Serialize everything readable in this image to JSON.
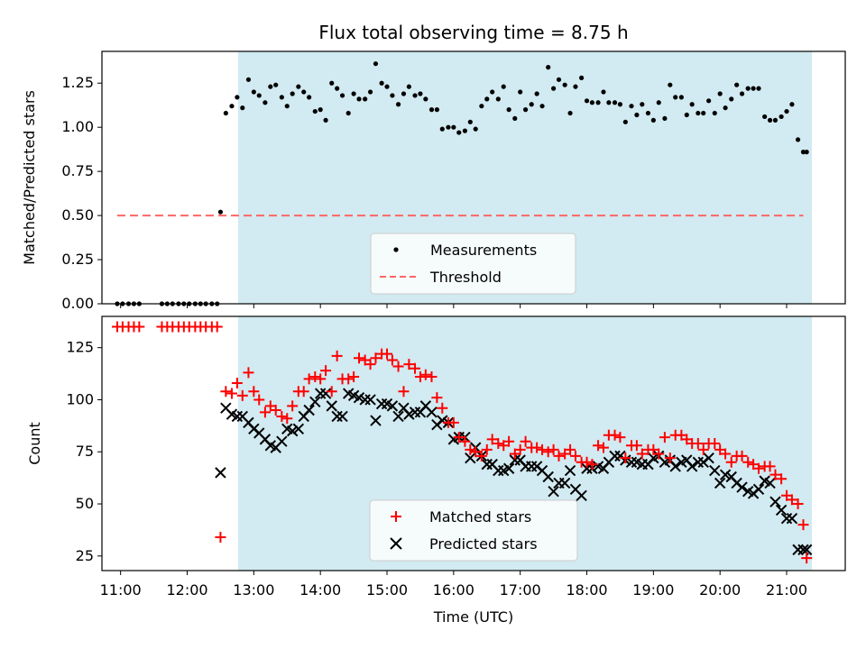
{
  "chart_data": [
    {
      "type": "scatter",
      "title": "Flux total observing time = 8.75 h",
      "xlabel": "",
      "ylabel": "Matched/Predicted stars",
      "xlim": [
        10.72,
        21.88
      ],
      "ylim": [
        0.0,
        1.43
      ],
      "yticks": [
        "0.00",
        "0.25",
        "0.50",
        "0.75",
        "1.00",
        "1.25"
      ],
      "shaded_span": [
        12.5,
        21.25
      ],
      "threshold": {
        "name": "Threshold",
        "value": 0.5,
        "x_range": [
          10.95,
          21.25
        ],
        "color": "#ff6666"
      },
      "legend": {
        "position": "lower center",
        "entries": [
          "Measurements",
          "Threshold"
        ]
      },
      "series": [
        {
          "name": "Measurements",
          "color": "#000000",
          "x": [
            10.95,
            11.03,
            11.12,
            11.2,
            11.28,
            11.62,
            11.7,
            11.78,
            11.87,
            11.95,
            12.03,
            12.12,
            12.2,
            12.28,
            12.37,
            12.45,
            12.5,
            12.58,
            12.67,
            12.75,
            12.83,
            12.92,
            13.0,
            13.08,
            13.17,
            13.25,
            13.33,
            13.42,
            13.5,
            13.58,
            13.67,
            13.75,
            13.83,
            13.92,
            14.0,
            14.08,
            14.17,
            14.25,
            14.33,
            14.42,
            14.5,
            14.58,
            14.67,
            14.75,
            14.83,
            14.92,
            15.0,
            15.08,
            15.17,
            15.25,
            15.33,
            15.42,
            15.5,
            15.58,
            15.67,
            15.75,
            15.83,
            15.92,
            16.0,
            16.08,
            16.17,
            16.25,
            16.33,
            16.42,
            16.5,
            16.58,
            16.67,
            16.75,
            16.83,
            16.92,
            17.0,
            17.08,
            17.17,
            17.25,
            17.33,
            17.42,
            17.5,
            17.58,
            17.67,
            17.75,
            17.83,
            17.92,
            18.0,
            18.08,
            18.17,
            18.25,
            18.33,
            18.42,
            18.5,
            18.58,
            18.67,
            18.75,
            18.83,
            18.92,
            19.0,
            19.08,
            19.17,
            19.25,
            19.33,
            19.42,
            19.5,
            19.58,
            19.67,
            19.75,
            19.83,
            19.92,
            20.0,
            20.08,
            20.17,
            20.25,
            20.33,
            20.42,
            20.5,
            20.58,
            20.67,
            20.75,
            20.83,
            20.92,
            21.0,
            21.08,
            21.17,
            21.25,
            21.3
          ],
          "values": [
            0.0,
            0.0,
            0.0,
            0.0,
            0.0,
            0.0,
            0.0,
            0.0,
            0.0,
            0.0,
            0.0,
            0.0,
            0.0,
            0.0,
            0.0,
            0.0,
            0.52,
            1.08,
            1.12,
            1.17,
            1.11,
            1.27,
            1.2,
            1.18,
            1.14,
            1.23,
            1.24,
            1.17,
            1.12,
            1.19,
            1.23,
            1.2,
            1.17,
            1.09,
            1.1,
            1.04,
            1.25,
            1.22,
            1.18,
            1.08,
            1.19,
            1.16,
            1.16,
            1.2,
            1.36,
            1.25,
            1.23,
            1.18,
            1.13,
            1.19,
            1.23,
            1.18,
            1.19,
            1.16,
            1.1,
            1.1,
            0.99,
            1.0,
            1.0,
            0.97,
            0.98,
            1.03,
            0.99,
            1.12,
            1.16,
            1.2,
            1.16,
            1.23,
            1.1,
            1.05,
            1.2,
            1.1,
            1.13,
            1.19,
            1.12,
            1.34,
            1.22,
            1.27,
            1.24,
            1.08,
            1.23,
            1.28,
            1.15,
            1.14,
            1.14,
            1.2,
            1.14,
            1.14,
            1.13,
            1.03,
            1.12,
            1.07,
            1.13,
            1.08,
            1.04,
            1.14,
            1.05,
            1.24,
            1.17,
            1.17,
            1.07,
            1.13,
            1.08,
            1.08,
            1.15,
            1.08,
            1.19,
            1.11,
            1.16,
            1.24,
            1.19,
            1.22,
            1.22,
            1.22,
            1.06,
            1.04,
            1.04,
            1.06,
            1.09,
            1.13,
            0.93,
            0.86,
            0.86
          ]
        }
      ]
    },
    {
      "type": "scatter",
      "title": "",
      "xlabel": "Time (UTC)",
      "ylabel": "Count",
      "xlim": [
        10.72,
        21.88
      ],
      "ylim": [
        18,
        140
      ],
      "yticks": [
        "25",
        "50",
        "75",
        "100",
        "125"
      ],
      "xticks": [
        "11:00",
        "12:00",
        "13:00",
        "14:00",
        "15:00",
        "16:00",
        "17:00",
        "18:00",
        "19:00",
        "20:00",
        "21:00"
      ],
      "shaded_span": [
        12.5,
        21.25
      ],
      "legend": {
        "position": "lower center",
        "entries": [
          "Matched stars",
          "Predicted stars"
        ]
      },
      "series": [
        {
          "name": "Matched stars",
          "marker": "plus",
          "color": "#ff0000",
          "x": [
            10.95,
            11.03,
            11.12,
            11.2,
            11.28,
            11.62,
            11.7,
            11.78,
            11.87,
            11.95,
            12.03,
            12.12,
            12.2,
            12.28,
            12.37,
            12.45,
            12.5,
            12.58,
            12.67,
            12.75,
            12.83,
            12.92,
            13.0,
            13.08,
            13.17,
            13.25,
            13.33,
            13.42,
            13.5,
            13.58,
            13.67,
            13.75,
            13.83,
            13.92,
            14.0,
            14.08,
            14.17,
            14.25,
            14.33,
            14.42,
            14.5,
            14.58,
            14.67,
            14.75,
            14.83,
            14.92,
            15.0,
            15.08,
            15.17,
            15.25,
            15.33,
            15.42,
            15.5,
            15.58,
            15.67,
            15.75,
            15.83,
            15.92,
            16.0,
            16.08,
            16.17,
            16.25,
            16.33,
            16.42,
            16.5,
            16.58,
            16.67,
            16.75,
            16.83,
            16.92,
            17.0,
            17.08,
            17.17,
            17.25,
            17.33,
            17.42,
            17.5,
            17.58,
            17.67,
            17.75,
            17.83,
            17.92,
            18.0,
            18.08,
            18.17,
            18.25,
            18.33,
            18.42,
            18.5,
            18.58,
            18.67,
            18.75,
            18.83,
            18.92,
            19.0,
            19.08,
            19.17,
            19.25,
            19.33,
            19.42,
            19.5,
            19.58,
            19.67,
            19.75,
            19.83,
            19.92,
            20.0,
            20.08,
            20.17,
            20.25,
            20.33,
            20.42,
            20.5,
            20.58,
            20.67,
            20.75,
            20.83,
            20.92,
            21.0,
            21.08,
            21.17,
            21.25,
            21.3
          ],
          "values": [
            135,
            135,
            135,
            135,
            135,
            135,
            135,
            135,
            135,
            135,
            135,
            135,
            135,
            135,
            135,
            135,
            34,
            104,
            103,
            108,
            102,
            113,
            104,
            100,
            94,
            97,
            95,
            92,
            91,
            97,
            104,
            104,
            110,
            111,
            110,
            114,
            104,
            121,
            110,
            110,
            111,
            120,
            119,
            117,
            120,
            122,
            122,
            119,
            116,
            104,
            117,
            115,
            111,
            112,
            111,
            101,
            96,
            89,
            89,
            82,
            80,
            76,
            75,
            73,
            76,
            81,
            79,
            78,
            80,
            74,
            76,
            80,
            77,
            77,
            76,
            75,
            76,
            73,
            74,
            76,
            73,
            70,
            70,
            69,
            78,
            77,
            83,
            83,
            82,
            72,
            78,
            78,
            74,
            76,
            76,
            74,
            82,
            72,
            83,
            83,
            81,
            79,
            79,
            76,
            79,
            79,
            76,
            74,
            70,
            73,
            73,
            70,
            69,
            67,
            68,
            68,
            64,
            62,
            54,
            52,
            50,
            40,
            24
          ]
        },
        {
          "name": "Predicted stars",
          "marker": "x",
          "color": "#000000",
          "x": [
            12.5,
            12.58,
            12.67,
            12.75,
            12.83,
            12.92,
            13.0,
            13.08,
            13.17,
            13.25,
            13.33,
            13.42,
            13.5,
            13.58,
            13.67,
            13.75,
            13.83,
            13.92,
            14.0,
            14.08,
            14.17,
            14.25,
            14.33,
            14.42,
            14.5,
            14.58,
            14.67,
            14.75,
            14.83,
            14.92,
            15.0,
            15.08,
            15.17,
            15.25,
            15.33,
            15.42,
            15.5,
            15.58,
            15.67,
            15.75,
            15.83,
            15.92,
            16.0,
            16.08,
            16.17,
            16.25,
            16.33,
            16.42,
            16.5,
            16.58,
            16.67,
            16.75,
            16.83,
            16.92,
            17.0,
            17.08,
            17.17,
            17.25,
            17.33,
            17.42,
            17.5,
            17.58,
            17.67,
            17.75,
            17.83,
            17.92,
            18.0,
            18.08,
            18.17,
            18.25,
            18.33,
            18.42,
            18.5,
            18.58,
            18.67,
            18.75,
            18.83,
            18.92,
            19.0,
            19.08,
            19.17,
            19.25,
            19.33,
            19.42,
            19.5,
            19.58,
            19.67,
            19.75,
            19.83,
            19.92,
            20.0,
            20.08,
            20.17,
            20.25,
            20.33,
            20.42,
            20.5,
            20.58,
            20.67,
            20.75,
            20.83,
            20.92,
            21.0,
            21.08,
            21.17,
            21.25,
            21.3
          ],
          "values": [
            65,
            96,
            93,
            92,
            92,
            89,
            86,
            84,
            81,
            78,
            77,
            80,
            86,
            85,
            86,
            92,
            95,
            99,
            103,
            103,
            97,
            92,
            92,
            103,
            102,
            101,
            100,
            100,
            90,
            98,
            98,
            97,
            92,
            96,
            93,
            94,
            94,
            97,
            94,
            88,
            90,
            89,
            81,
            82,
            82,
            72,
            77,
            73,
            69,
            69,
            66,
            66,
            67,
            71,
            71,
            68,
            68,
            68,
            66,
            63,
            56,
            60,
            60,
            66,
            57,
            54,
            67,
            67,
            68,
            67,
            70,
            73,
            73,
            71,
            70,
            70,
            69,
            69,
            72,
            73,
            70,
            71,
            68,
            70,
            71,
            68,
            70,
            70,
            72,
            66,
            60,
            64,
            63,
            60,
            58,
            56,
            55,
            57,
            61,
            60,
            51,
            47,
            43,
            43,
            28,
            28,
            28
          ]
        }
      ]
    }
  ]
}
